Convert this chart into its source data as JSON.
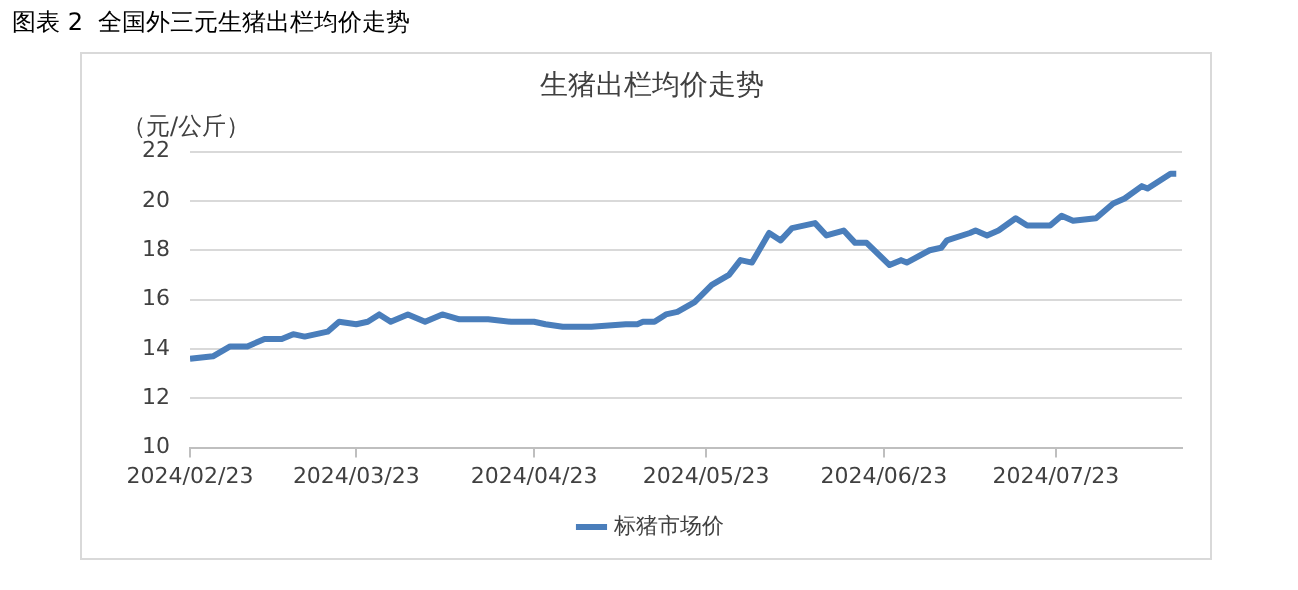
{
  "chart_data": {
    "type": "line",
    "title": "生猪出栏均价走势",
    "ylabel": "（元/公斤）",
    "annotations": [
      "图表 2  全国外三元生猪出栏均价走势"
    ],
    "x": [
      "2024-02-23",
      "2024-02-27",
      "2024-03-01",
      "2024-03-04",
      "2024-03-07",
      "2024-03-10",
      "2024-03-12",
      "2024-03-14",
      "2024-03-18",
      "2024-03-20",
      "2024-03-23",
      "2024-03-25",
      "2024-03-27",
      "2024-03-29",
      "2024-04-01",
      "2024-04-04",
      "2024-04-07",
      "2024-04-10",
      "2024-04-15",
      "2024-04-19",
      "2024-04-23",
      "2024-04-25",
      "2024-04-28",
      "2024-05-03",
      "2024-05-09",
      "2024-05-11",
      "2024-05-12",
      "2024-05-14",
      "2024-05-16",
      "2024-05-18",
      "2024-05-21",
      "2024-05-24",
      "2024-05-27",
      "2024-05-29",
      "2024-05-31",
      "2024-06-03",
      "2024-06-05",
      "2024-06-07",
      "2024-06-11",
      "2024-06-13",
      "2024-06-16",
      "2024-06-18",
      "2024-06-20",
      "2024-06-24",
      "2024-06-26",
      "2024-06-27",
      "2024-07-01",
      "2024-07-03",
      "2024-07-04",
      "2024-07-08",
      "2024-07-09",
      "2024-07-11",
      "2024-07-13",
      "2024-07-16",
      "2024-07-18",
      "2024-07-22",
      "2024-07-24",
      "2024-07-26",
      "2024-07-30",
      "2024-08-02",
      "2024-08-04",
      "2024-08-07",
      "2024-08-08",
      "2024-08-12",
      "2024-08-13"
    ],
    "series": [
      {
        "name": "标猪市场价",
        "color": "#4a7ebb",
        "values": [
          13.6,
          13.7,
          14.1,
          14.1,
          14.4,
          14.4,
          14.6,
          14.5,
          14.7,
          15.1,
          15.0,
          15.1,
          15.4,
          15.1,
          15.4,
          15.1,
          15.4,
          15.2,
          15.2,
          15.1,
          15.1,
          15.0,
          14.9,
          14.9,
          15.0,
          15.0,
          15.1,
          15.1,
          15.4,
          15.5,
          15.9,
          16.6,
          17.0,
          17.6,
          17.5,
          18.7,
          18.4,
          18.9,
          19.1,
          18.6,
          18.8,
          18.3,
          18.3,
          17.4,
          17.6,
          17.5,
          18.0,
          18.1,
          18.4,
          18.7,
          18.8,
          18.6,
          18.8,
          19.3,
          19.0,
          19.0,
          19.4,
          19.2,
          19.3,
          19.9,
          20.1,
          20.6,
          20.5,
          21.1,
          21.1
        ]
      }
    ],
    "xlim": [
      "2024-02-23",
      "2024-08-14"
    ],
    "xticks": [
      {
        "value": "2024-02-23",
        "label": "2024/02/23"
      },
      {
        "value": "2024-03-23",
        "label": "2024/03/23"
      },
      {
        "value": "2024-04-23",
        "label": "2024/04/23"
      },
      {
        "value": "2024-05-23",
        "label": "2024/05/23"
      },
      {
        "value": "2024-06-23",
        "label": "2024/06/23"
      },
      {
        "value": "2024-07-23",
        "label": "2024/07/23"
      }
    ],
    "ylim": [
      10,
      22
    ],
    "yticks": [
      10,
      12,
      14,
      16,
      18,
      20,
      22
    ],
    "grid": "y",
    "legend": "bottom",
    "line_style": "solid"
  }
}
